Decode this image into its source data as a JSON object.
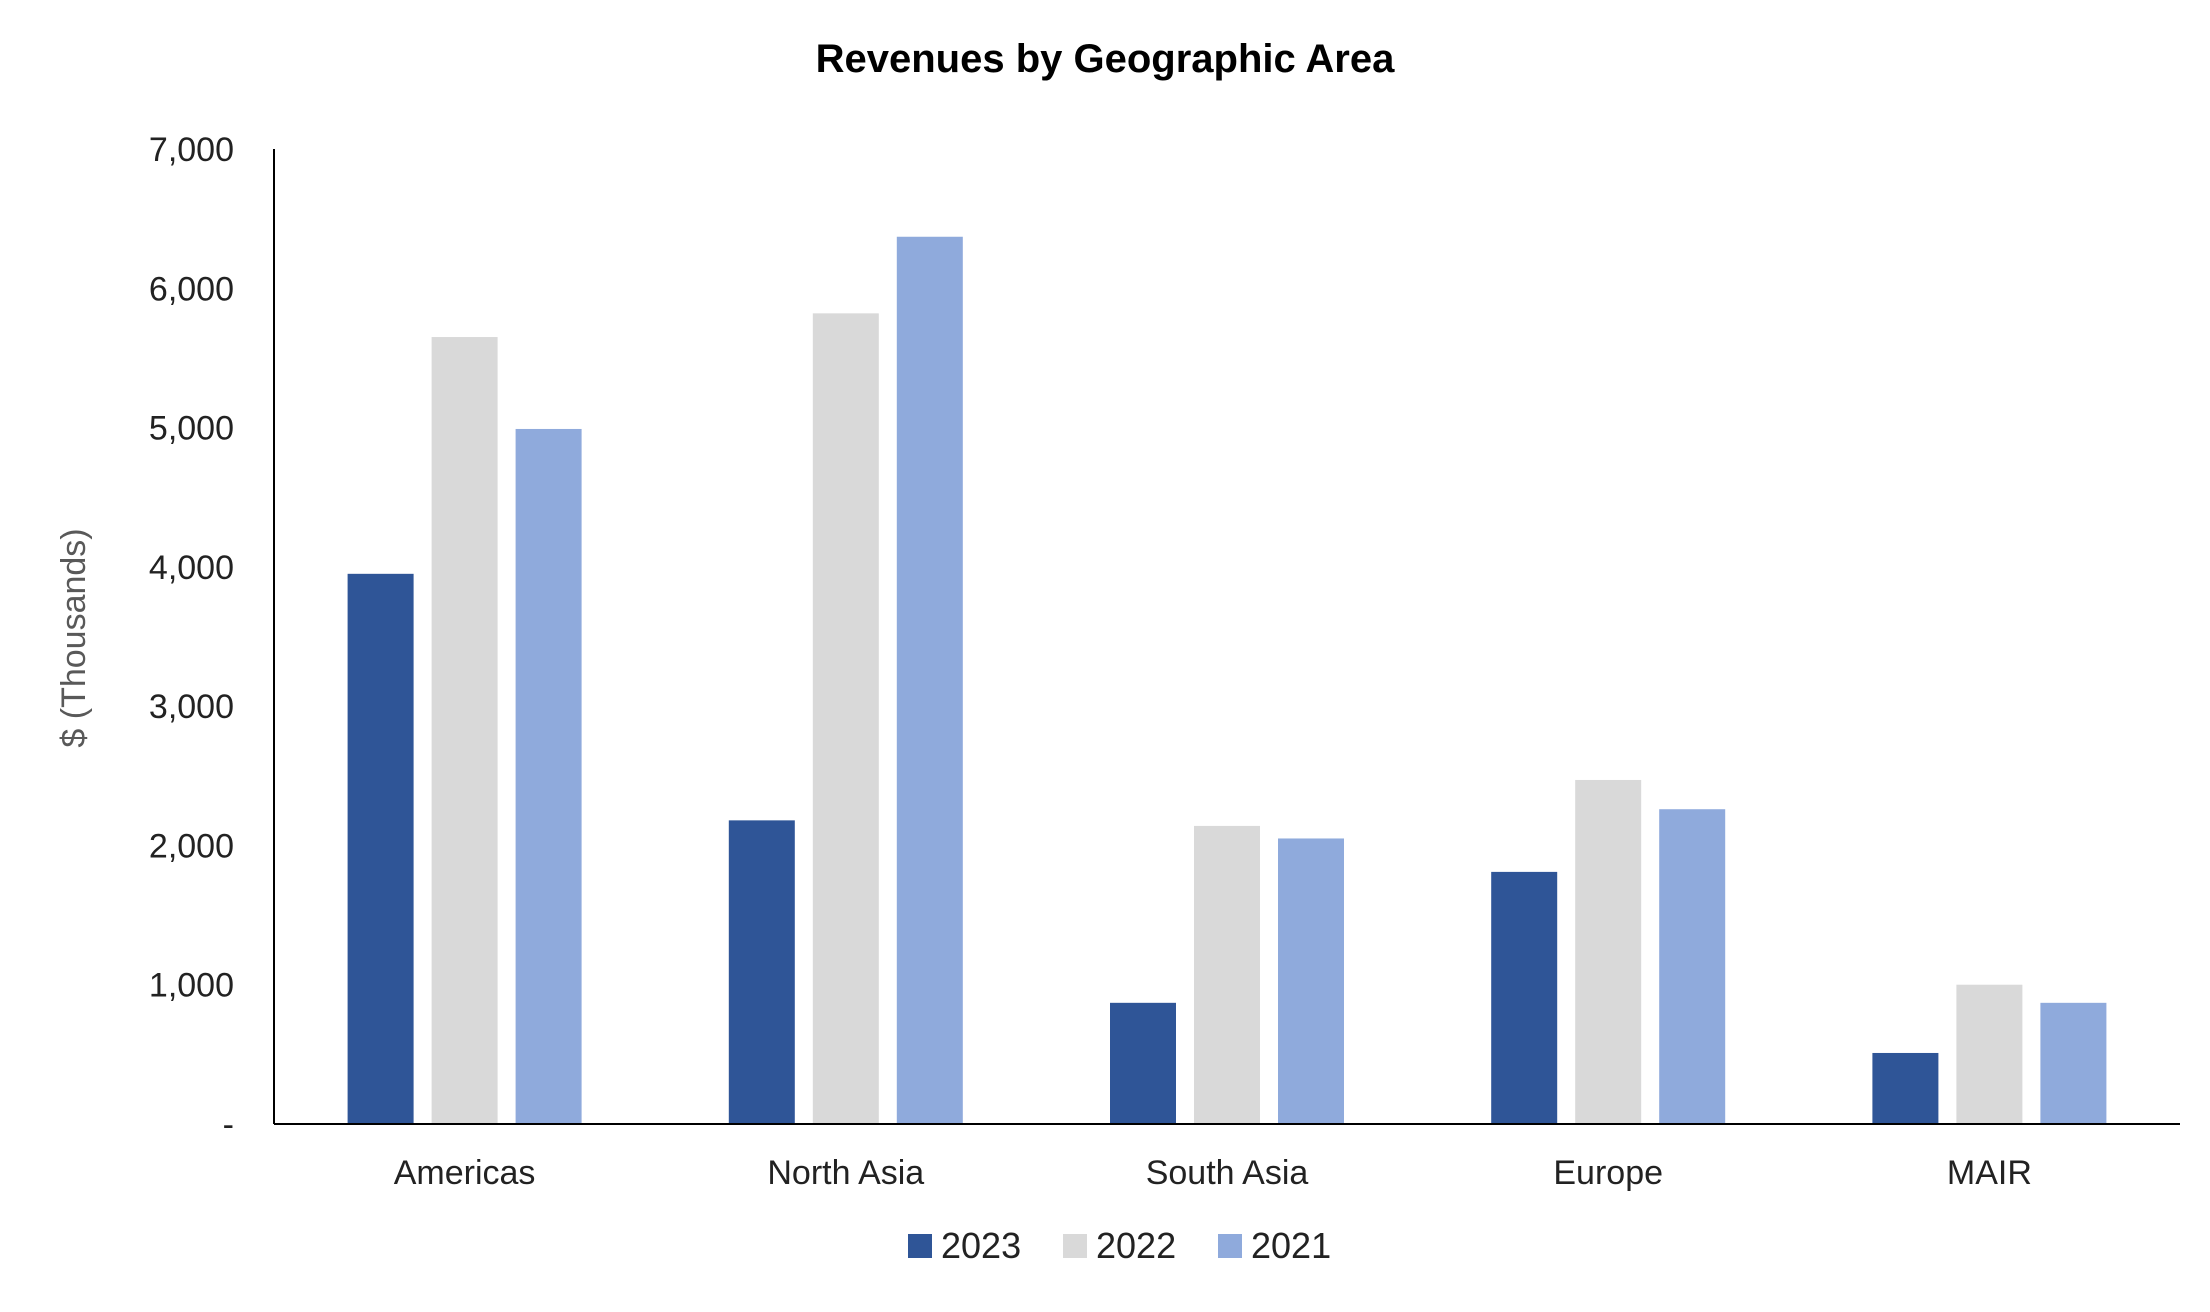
{
  "chart_data": {
    "type": "bar",
    "title": "Revenues by Geographic Area",
    "xlabel": "",
    "ylabel": "$ (Thousands)",
    "ylim": [
      0,
      7000
    ],
    "yticks": [
      0,
      1000,
      2000,
      3000,
      4000,
      5000,
      6000,
      7000
    ],
    "ytick_labels": [
      "-",
      "1,000",
      "2,000",
      "3,000",
      "4,000",
      "5,000",
      "6,000",
      "7,000"
    ],
    "categories": [
      "Americas",
      "North Asia",
      "South Asia",
      "Europe",
      "MAIR"
    ],
    "series": [
      {
        "name": "2023",
        "color": "#2F5597",
        "values": [
          3950,
          2180,
          870,
          1810,
          510
        ]
      },
      {
        "name": "2022",
        "color": "#D9D9D9",
        "values": [
          5650,
          5820,
          2140,
          2470,
          1000
        ]
      },
      {
        "name": "2021",
        "color": "#8FAADC",
        "values": [
          4990,
          6370,
          2050,
          2260,
          870
        ]
      }
    ],
    "grid": false,
    "legend_position": "bottom-center"
  }
}
